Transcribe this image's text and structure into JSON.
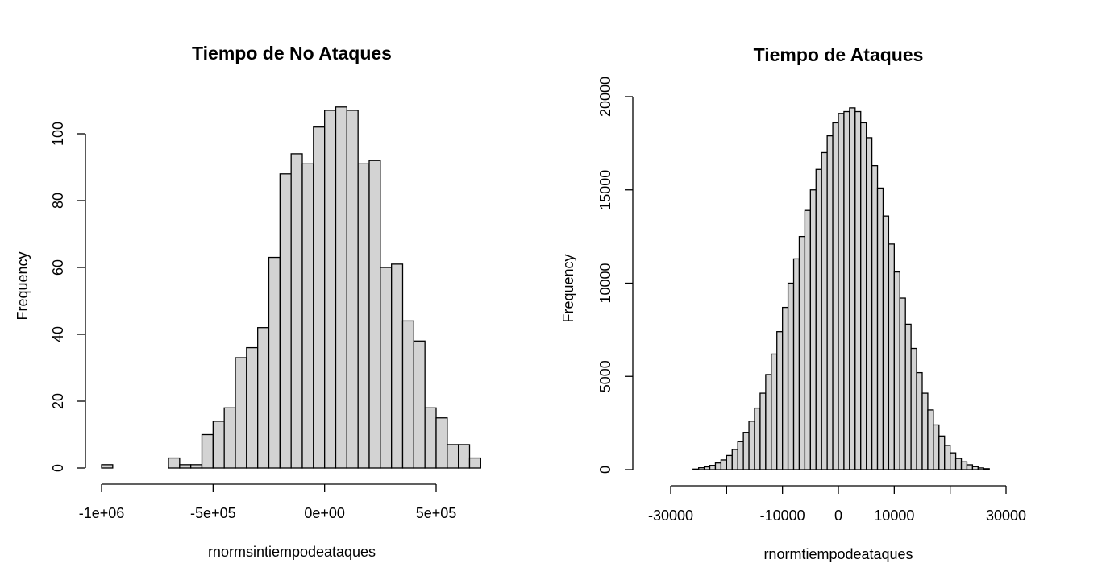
{
  "chart_data": [
    {
      "type": "bar",
      "subtype": "histogram",
      "title": "Tiempo de No Ataques",
      "xlabel": "rnormsintiempodeataques",
      "ylabel": "Frequency",
      "xlim": [
        -1000000,
        700000
      ],
      "ylim": [
        0,
        110
      ],
      "bin_width": 50000,
      "bin_start": -1000000,
      "values": [
        1,
        0,
        0,
        0,
        0,
        0,
        3,
        1,
        1,
        10,
        14,
        18,
        33,
        36,
        42,
        63,
        88,
        94,
        91,
        102,
        107,
        108,
        107,
        91,
        92,
        60,
        61,
        44,
        38,
        18,
        15,
        7,
        7,
        3
      ],
      "x_ticks": [
        {
          "value": -1000000,
          "label": "-1e+06"
        },
        {
          "value": -500000,
          "label": "-5e+05"
        },
        {
          "value": 0,
          "label": "0e+00"
        },
        {
          "value": 500000,
          "label": "5e+05"
        }
      ],
      "y_ticks": [
        {
          "value": 0,
          "label": "0"
        },
        {
          "value": 20,
          "label": "20"
        },
        {
          "value": 40,
          "label": "40"
        },
        {
          "value": 60,
          "label": "60"
        },
        {
          "value": 80,
          "label": "80"
        },
        {
          "value": 100,
          "label": "100"
        }
      ],
      "grid": false,
      "bar_fill": "#d3d3d3",
      "bar_stroke": "#000000"
    },
    {
      "type": "bar",
      "subtype": "histogram",
      "title": "Tiempo de Ataques",
      "xlabel": "rnormtiempodeataques",
      "ylabel": "Frequency",
      "xlim": [
        -34000,
        34000
      ],
      "ylim": [
        0,
        20000
      ],
      "bin_width": 1000,
      "bin_start": -26000,
      "values": [
        30,
        100,
        150,
        230,
        360,
        520,
        760,
        1080,
        1500,
        2000,
        2600,
        3300,
        4100,
        5100,
        6200,
        7400,
        8700,
        10000,
        11300,
        12500,
        13900,
        15000,
        16100,
        17000,
        17900,
        18600,
        19100,
        19200,
        19400,
        19200,
        18600,
        17800,
        16300,
        15100,
        13600,
        12100,
        10600,
        9200,
        7800,
        6500,
        5200,
        4100,
        3200,
        2400,
        1800,
        1300,
        900,
        600,
        420,
        260,
        160,
        90,
        50
      ],
      "x_ticks": [
        {
          "value": -30000,
          "label": "-30000"
        },
        {
          "value": -10000,
          "label": "-10000"
        },
        {
          "value": 0,
          "label": "0"
        },
        {
          "value": 10000,
          "label": "10000"
        },
        {
          "value": 30000,
          "label": "30000"
        }
      ],
      "x_tick_marks": [
        -30000,
        -20000,
        -10000,
        0,
        10000,
        20000,
        30000
      ],
      "y_ticks": [
        {
          "value": 0,
          "label": "0"
        },
        {
          "value": 5000,
          "label": "5000"
        },
        {
          "value": 10000,
          "label": "10000"
        },
        {
          "value": 15000,
          "label": "15000"
        },
        {
          "value": 20000,
          "label": "20000"
        }
      ],
      "grid": false,
      "bar_fill": "#d3d3d3",
      "bar_stroke": "#000000"
    }
  ]
}
